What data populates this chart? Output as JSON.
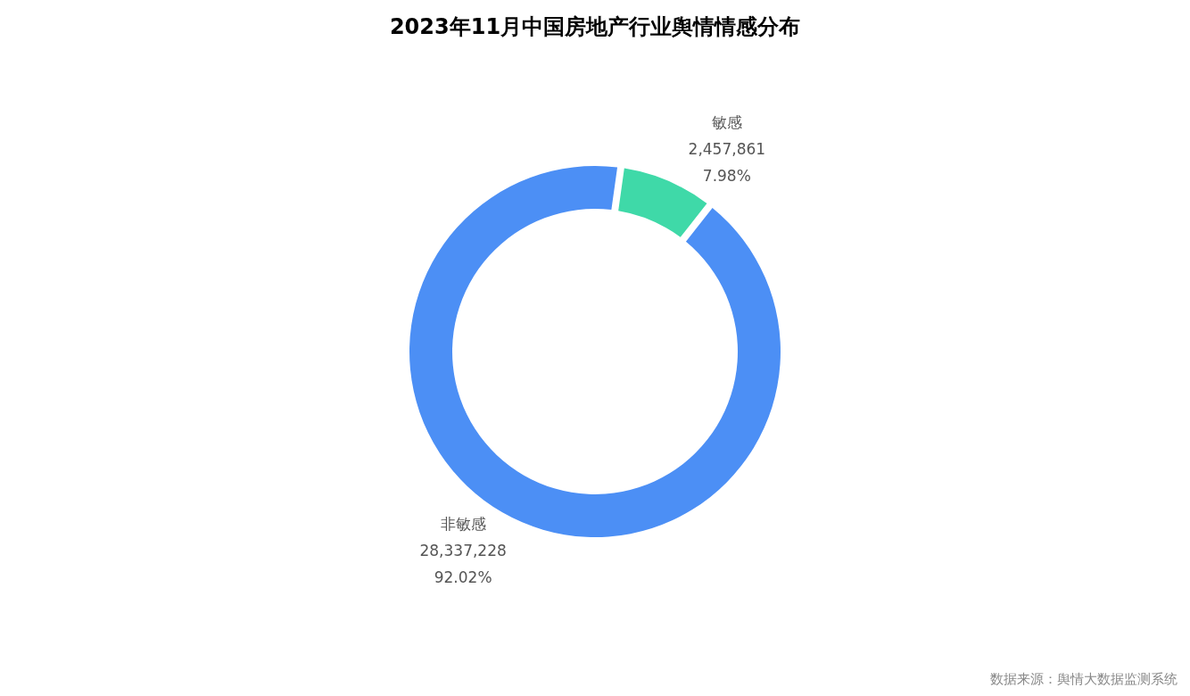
{
  "chart_data": {
    "type": "donut",
    "title": "2023年11月中国房地产行业舆情情感分布",
    "categories": [
      "敏感",
      "非敏感"
    ],
    "values": [
      2457861,
      28337228
    ],
    "value_labels": [
      "2,457,861\n7.98%",
      "28,337,228\n92.02%"
    ],
    "colors": [
      "#3fd9a8",
      "#4c8ff5"
    ],
    "annotations": [
      "数据来源：舆情大数据监测系统"
    ]
  }
}
